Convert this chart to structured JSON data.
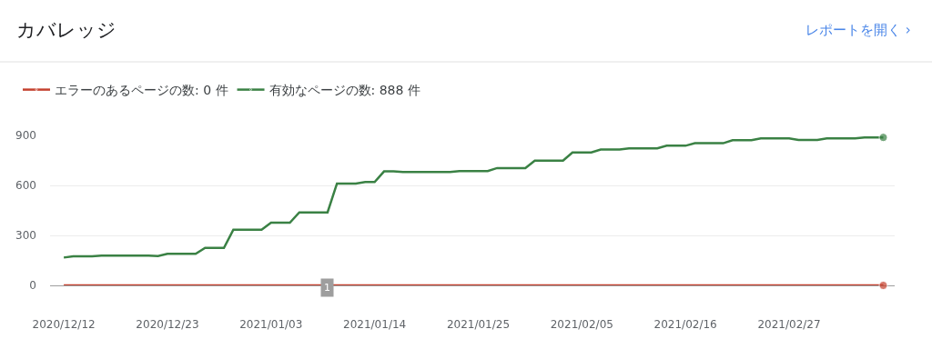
{
  "chart_data": {
    "type": "line",
    "title": "カバレッジ",
    "annotations": [
      "レポートを開く ›",
      {
        "text": "1",
        "x": "2021-01-09"
      }
    ],
    "x": [
      "2020-12-12",
      "2020-12-13",
      "2020-12-14",
      "2020-12-15",
      "2020-12-16",
      "2020-12-17",
      "2020-12-18",
      "2020-12-19",
      "2020-12-20",
      "2020-12-21",
      "2020-12-22",
      "2020-12-23",
      "2020-12-24",
      "2020-12-25",
      "2020-12-26",
      "2020-12-27",
      "2020-12-28",
      "2020-12-29",
      "2020-12-30",
      "2020-12-31",
      "2021-01-01",
      "2021-01-02",
      "2021-01-03",
      "2021-01-04",
      "2021-01-05",
      "2021-01-06",
      "2021-01-07",
      "2021-01-08",
      "2021-01-09",
      "2021-01-10",
      "2021-01-11",
      "2021-01-12",
      "2021-01-13",
      "2021-01-14",
      "2021-01-15",
      "2021-01-16",
      "2021-01-17",
      "2021-01-18",
      "2021-01-19",
      "2021-01-20",
      "2021-01-21",
      "2021-01-22",
      "2021-01-23",
      "2021-01-24",
      "2021-01-25",
      "2021-01-26",
      "2021-01-27",
      "2021-01-28",
      "2021-01-29",
      "2021-01-30",
      "2021-01-31",
      "2021-02-01",
      "2021-02-02",
      "2021-02-03",
      "2021-02-04",
      "2021-02-05",
      "2021-02-06",
      "2021-02-07",
      "2021-02-08",
      "2021-02-09",
      "2021-02-10",
      "2021-02-11",
      "2021-02-12",
      "2021-02-13",
      "2021-02-14",
      "2021-02-15",
      "2021-02-16",
      "2021-02-17",
      "2021-02-18",
      "2021-02-19",
      "2021-02-20",
      "2021-02-21",
      "2021-02-22",
      "2021-02-23",
      "2021-02-24",
      "2021-02-25",
      "2021-02-26",
      "2021-02-27",
      "2021-02-28",
      "2021-03-01",
      "2021-03-02",
      "2021-03-03",
      "2021-03-04",
      "2021-03-05",
      "2021-03-06",
      "2021-03-07",
      "2021-03-08",
      "2021-03-09"
    ],
    "series": [
      {
        "name": "エラーのあるページの数: 0 件",
        "color": "#c5412f",
        "values": [
          0,
          0,
          0,
          0,
          0,
          0,
          0,
          0,
          0,
          0,
          0,
          0,
          0,
          0,
          0,
          0,
          0,
          0,
          0,
          0,
          0,
          0,
          0,
          0,
          0,
          0,
          0,
          0,
          0,
          0,
          0,
          0,
          0,
          0,
          0,
          0,
          0,
          0,
          0,
          0,
          0,
          0,
          0,
          0,
          0,
          0,
          0,
          0,
          0,
          0,
          0,
          0,
          0,
          0,
          0,
          0,
          0,
          0,
          0,
          0,
          0,
          0,
          0,
          0,
          0,
          0,
          0,
          0,
          0,
          0,
          0,
          0,
          0,
          0,
          0,
          0,
          0,
          0,
          0,
          0,
          0,
          0,
          0,
          0,
          0,
          0,
          0,
          0
        ]
      },
      {
        "name": "有効なページの数: 888 件",
        "color": "#3a8144",
        "values": [
          167,
          175,
          175,
          175,
          178,
          178,
          178,
          178,
          178,
          178,
          176,
          189,
          189,
          189,
          189,
          225,
          225,
          225,
          334,
          334,
          334,
          334,
          376,
          376,
          376,
          438,
          438,
          438,
          438,
          611,
          611,
          611,
          620,
          620,
          684,
          684,
          680,
          680,
          680,
          680,
          680,
          680,
          686,
          686,
          686,
          686,
          704,
          704,
          704,
          704,
          749,
          749,
          749,
          749,
          798,
          798,
          798,
          815,
          815,
          815,
          822,
          822,
          822,
          822,
          838,
          838,
          838,
          853,
          853,
          853,
          853,
          871,
          871,
          871,
          882,
          882,
          882,
          882,
          873,
          873,
          873,
          882,
          882,
          882,
          882,
          888,
          888,
          888
        ]
      }
    ],
    "xlim": [
      "2020-12-10T13:00",
      "2021-03-10T05:00"
    ],
    "xticks": [
      {
        "value": "2020-12-12",
        "label": "2020/12/12"
      },
      {
        "value": "2020-12-23",
        "label": "2020/12/23"
      },
      {
        "value": "2021-01-03",
        "label": "2021/01/03"
      },
      {
        "value": "2021-01-14",
        "label": "2021/01/14"
      },
      {
        "value": "2021-01-25",
        "label": "2021/01/25"
      },
      {
        "value": "2021-02-05",
        "label": "2021/02/05"
      },
      {
        "value": "2021-02-16",
        "label": "2021/02/16"
      },
      {
        "value": "2021-02-27",
        "label": "2021/02/27"
      }
    ],
    "ylim": [
      0,
      900
    ],
    "yticks": [
      0,
      300,
      600,
      900
    ],
    "grid": "y",
    "legend": "top left",
    "marker": "none",
    "line_style": "solid"
  }
}
